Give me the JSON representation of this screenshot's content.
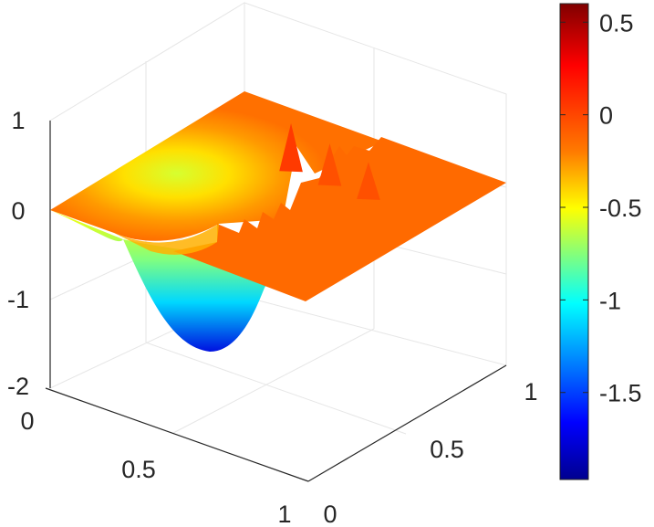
{
  "chart_data": {
    "type": "surface",
    "title": "",
    "xlabel": "",
    "ylabel": "",
    "zlabel": "",
    "x_ticks": [
      "0",
      "0.5",
      "1"
    ],
    "y_ticks": [
      "0",
      "0.5",
      "1"
    ],
    "z_ticks": [
      "1",
      "0",
      "-1",
      "-2"
    ],
    "xlim": [
      0,
      1
    ],
    "ylim": [
      0,
      1
    ],
    "zlim": [
      -2,
      1
    ],
    "grid": true,
    "colormap": "jet",
    "colorbar": {
      "position": "right",
      "ticks": [
        "0.5",
        "0",
        "-0.5",
        "-1",
        "-1.5"
      ],
      "range": [
        -1.97,
        0.6
      ]
    },
    "surface": {
      "trough_min": -1.6,
      "trough_center_y": 0.5,
      "plateau_value": 0.08,
      "spikes": [
        {
          "x": 0.45,
          "y": 0.63,
          "z": 0.62
        },
        {
          "x": 0.6,
          "y": 0.63,
          "z": 0.55
        },
        {
          "x": 0.75,
          "y": 0.63,
          "z": 0.5
        }
      ]
    }
  }
}
